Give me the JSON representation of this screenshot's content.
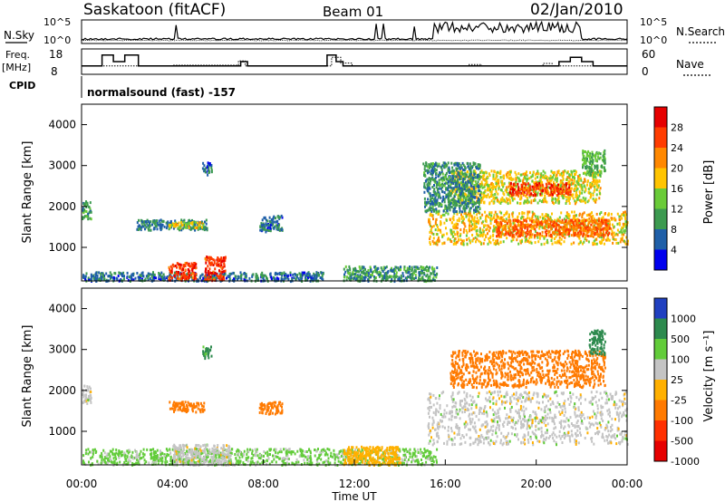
{
  "header": {
    "station": "Saskatoon (fitACF)",
    "beam": "Beam 01",
    "date": "02/Jan/2010"
  },
  "labels": {
    "nsky": "N.Sky",
    "nsearch": "N.Search",
    "freq_line1": "Freq.",
    "freq_line2": "[MHz]",
    "nave": "Nave",
    "cpid": "CPID",
    "program": "normalsound (fast) -157",
    "time_label": "Time UT",
    "range_label": "Slant Range [km]",
    "power_label": "Power [dB]",
    "velocity_label": "Velocity [m s⁻¹]"
  },
  "chart_data": {
    "type": "heatmap",
    "x_ticks": [
      "00:00",
      "04:00",
      "08:00",
      "12:00",
      "16:00",
      "20:00",
      "00:00"
    ],
    "x_range_hours": [
      0,
      24
    ],
    "noise_panel": {
      "left_ticks": [
        "10^5",
        "10^0"
      ],
      "right_ticks": [
        "10^5",
        "10^0"
      ]
    },
    "freq_panel": {
      "left_ticks": [
        "18",
        "8"
      ],
      "right_ticks": [
        "60",
        "0"
      ],
      "freq_mhz_steps": [
        [
          0,
          11
        ],
        [
          0.9,
          16
        ],
        [
          1.4,
          13
        ],
        [
          1.9,
          16
        ],
        [
          2.5,
          11
        ],
        [
          7.0,
          13
        ],
        [
          7.3,
          11
        ],
        [
          10.8,
          16
        ],
        [
          11.2,
          13
        ],
        [
          11.5,
          11
        ],
        [
          21.0,
          13
        ],
        [
          21.5,
          15
        ],
        [
          22.0,
          13
        ],
        [
          22.5,
          11
        ],
        [
          24,
          11
        ]
      ],
      "nave_steps": [
        [
          0,
          18
        ],
        [
          4.0,
          20
        ],
        [
          6.9,
          32
        ],
        [
          7.2,
          18
        ],
        [
          11.0,
          42
        ],
        [
          11.4,
          26
        ],
        [
          11.9,
          18
        ],
        [
          17.0,
          22
        ],
        [
          17.6,
          18
        ],
        [
          20.3,
          25
        ],
        [
          20.7,
          18
        ],
        [
          24,
          18
        ]
      ]
    },
    "range_ticks": [
      1000,
      2000,
      3000,
      4000
    ],
    "range_km": [
      180,
      4500
    ],
    "power_scale": {
      "ticks": [
        "28",
        "24",
        "20",
        "16",
        "12",
        "8",
        "4"
      ],
      "colors": [
        "#e60000",
        "#ff3c00",
        "#ff8800",
        "#ffc400",
        "#6acb38",
        "#3c9a50",
        "#1f5fa8",
        "#0000ee"
      ]
    },
    "velocity_scale": {
      "ticks": [
        "1000",
        "500",
        "100",
        "25",
        "-25",
        "-100",
        "-500",
        "-1000"
      ],
      "colors": [
        "#2040c0",
        "#2d8a4e",
        "#62cc3a",
        "#c4c4c4",
        "#ffb000",
        "#ff7a00",
        "#ff3000",
        "#e60000"
      ]
    },
    "power_regions": [
      {
        "t": [
          0.0,
          0.4
        ],
        "r": [
          1700,
          2150
        ],
        "v": 10
      },
      {
        "t": [
          2.4,
          5.5
        ],
        "r": [
          1450,
          1700
        ],
        "v": 8
      },
      {
        "t": [
          3.8,
          5.4
        ],
        "r": [
          1500,
          1650
        ],
        "v": 17
      },
      {
        "t": [
          7.8,
          8.8
        ],
        "r": [
          1400,
          1800
        ],
        "v": 7
      },
      {
        "t": [
          5.3,
          5.7
        ],
        "r": [
          2800,
          3100
        ],
        "v": 7
      },
      {
        "t": [
          0,
          10.6
        ],
        "r": [
          200,
          420
        ],
        "v": 7
      },
      {
        "t": [
          11.5,
          15.6
        ],
        "r": [
          200,
          560
        ],
        "v": 10
      },
      {
        "t": [
          3.8,
          5.0
        ],
        "r": [
          220,
          650
        ],
        "v": 27
      },
      {
        "t": [
          5.4,
          6.3
        ],
        "r": [
          220,
          800
        ],
        "v": 27
      },
      {
        "t": [
          15.2,
          24
        ],
        "r": [
          1100,
          1900
        ],
        "v": 18
      },
      {
        "t": [
          18.2,
          23.2
        ],
        "r": [
          1300,
          1700
        ],
        "v": 24
      },
      {
        "t": [
          16.2,
          22.8
        ],
        "r": [
          2100,
          2900
        ],
        "v": 17
      },
      {
        "t": [
          18.8,
          21.5
        ],
        "r": [
          2300,
          2600
        ],
        "v": 26
      },
      {
        "t": [
          15.0,
          17.5
        ],
        "r": [
          1900,
          3100
        ],
        "v": 9
      },
      {
        "t": [
          22.0,
          23.0
        ],
        "r": [
          2800,
          3400
        ],
        "v": 12
      }
    ],
    "velocity_regions": [
      {
        "t": [
          0.0,
          0.4
        ],
        "r": [
          1700,
          2150
        ],
        "v": 0
      },
      {
        "t": [
          3.8,
          5.4
        ],
        "r": [
          1500,
          1750
        ],
        "v": -200
      },
      {
        "t": [
          7.8,
          8.8
        ],
        "r": [
          1450,
          1750
        ],
        "v": -150
      },
      {
        "t": [
          5.3,
          5.7
        ],
        "r": [
          2800,
          3100
        ],
        "v": 120
      },
      {
        "t": [
          0,
          15.6
        ],
        "r": [
          200,
          600
        ],
        "v": 40
      },
      {
        "t": [
          4.0,
          6.5
        ],
        "r": [
          200,
          700
        ],
        "v": 0
      },
      {
        "t": [
          11.5,
          14.0
        ],
        "r": [
          200,
          650
        ],
        "v": -60
      },
      {
        "t": [
          15.2,
          24
        ],
        "r": [
          700,
          2000
        ],
        "v": 0
      },
      {
        "t": [
          16.2,
          23.0
        ],
        "r": [
          2100,
          3000
        ],
        "v": -250
      },
      {
        "t": [
          22.3,
          23.0
        ],
        "r": [
          2900,
          3500
        ],
        "v": 150
      }
    ]
  }
}
